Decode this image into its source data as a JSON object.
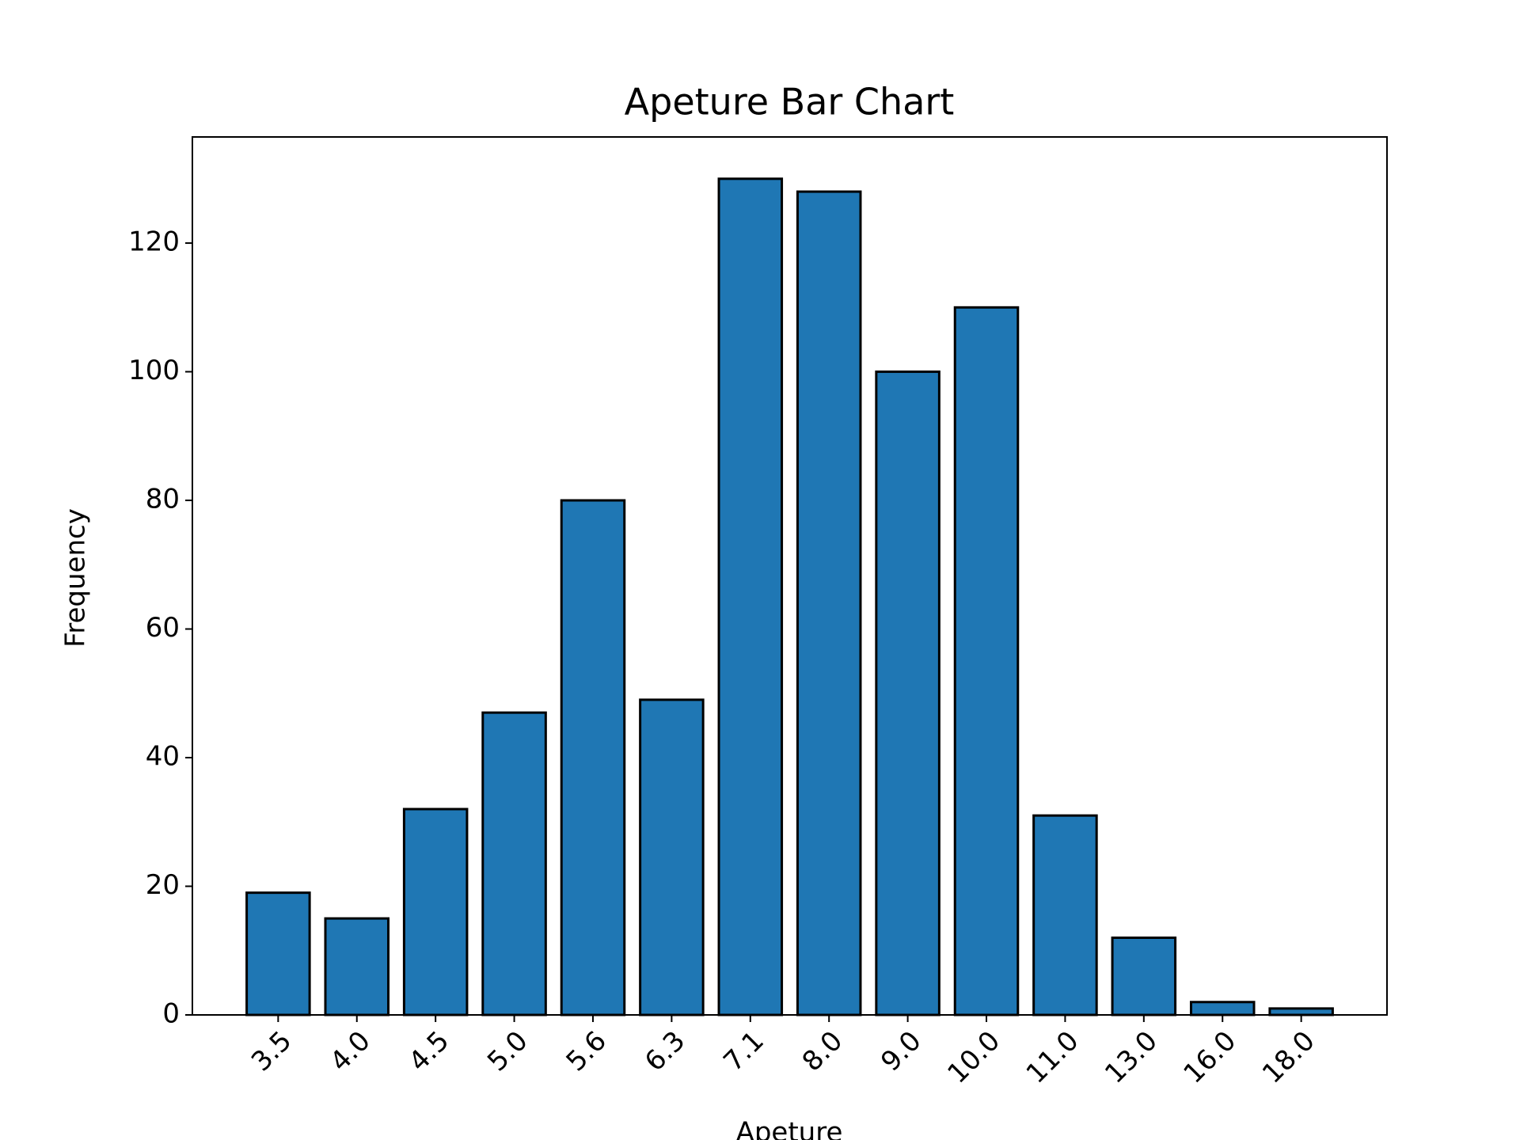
{
  "chart_data": {
    "type": "bar",
    "title": "Apeture Bar Chart",
    "x_label": "Apeture",
    "y_label": "Frequency",
    "categories": [
      "3.5",
      "4.0",
      "4.5",
      "5.0",
      "5.6",
      "6.3",
      "7.1",
      "8.0",
      "9.0",
      "10.0",
      "11.0",
      "13.0",
      "16.0",
      "18.0"
    ],
    "values": [
      19,
      15,
      32,
      47,
      80,
      49,
      130,
      128,
      100,
      110,
      31,
      12,
      2,
      1
    ],
    "color": "#1f77b4",
    "edgecolor": "#000000",
    "ylim": [
      0,
      136.5
    ],
    "yticks": [
      0,
      20,
      40,
      60,
      80,
      100,
      120
    ],
    "grid": false
  }
}
